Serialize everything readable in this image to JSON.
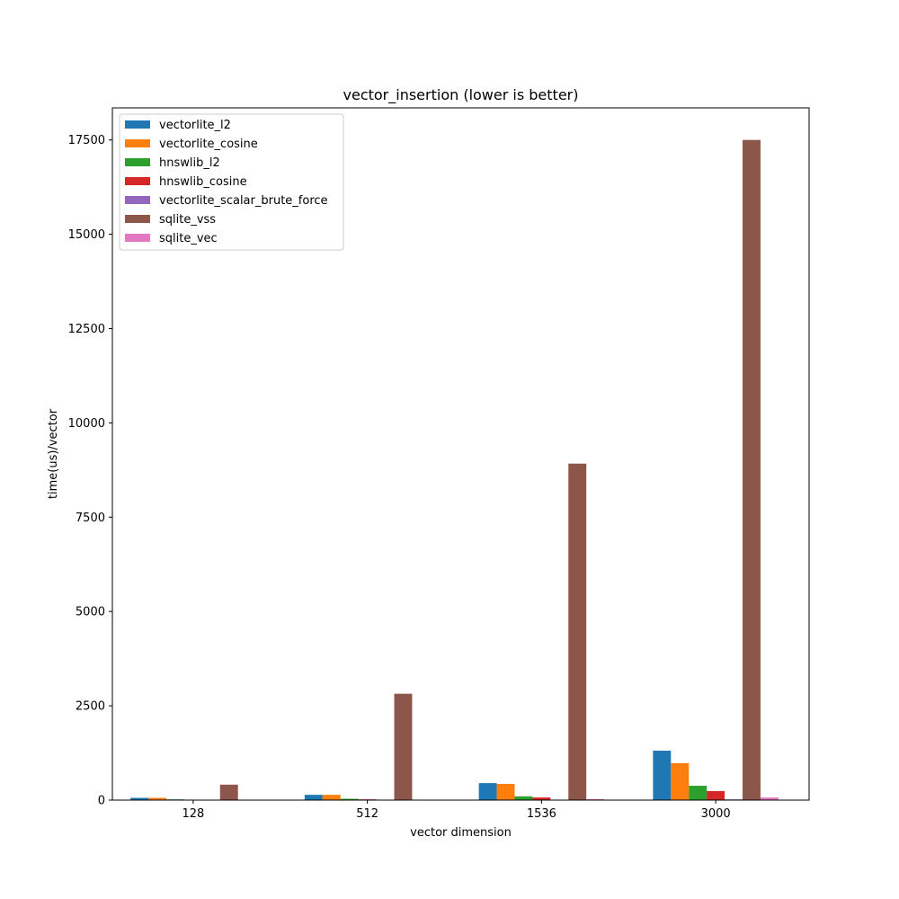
{
  "chart_data": {
    "type": "bar",
    "title": "vector_insertion (lower is better)",
    "xlabel": "vector dimension",
    "ylabel": "time(us)/vector",
    "categories": [
      "128",
      "512",
      "1536",
      "3000"
    ],
    "ylim": [
      0,
      18350
    ],
    "yticks": [
      0,
      2500,
      5000,
      7500,
      10000,
      12500,
      15000,
      17500
    ],
    "grid": false,
    "legend_position": "top-left",
    "series": [
      {
        "name": "vectorlite_l2",
        "color": "#1f77b4",
        "values": [
          60,
          140,
          450,
          1310
        ]
      },
      {
        "name": "vectorlite_cosine",
        "color": "#ff7f0e",
        "values": [
          60,
          140,
          430,
          980
        ]
      },
      {
        "name": "hnswlib_l2",
        "color": "#2ca02c",
        "values": [
          20,
          35,
          100,
          380
        ]
      },
      {
        "name": "hnswlib_cosine",
        "color": "#d62728",
        "values": [
          5,
          20,
          70,
          240
        ]
      },
      {
        "name": "vectorlite_scalar_brute_force",
        "color": "#9467bd",
        "values": [
          3,
          5,
          10,
          20
        ]
      },
      {
        "name": "sqlite_vss",
        "color": "#8c564b",
        "values": [
          410,
          2820,
          8920,
          17500
        ]
      },
      {
        "name": "sqlite_vec",
        "color": "#e377c2",
        "values": [
          3,
          10,
          25,
          70
        ]
      }
    ]
  }
}
